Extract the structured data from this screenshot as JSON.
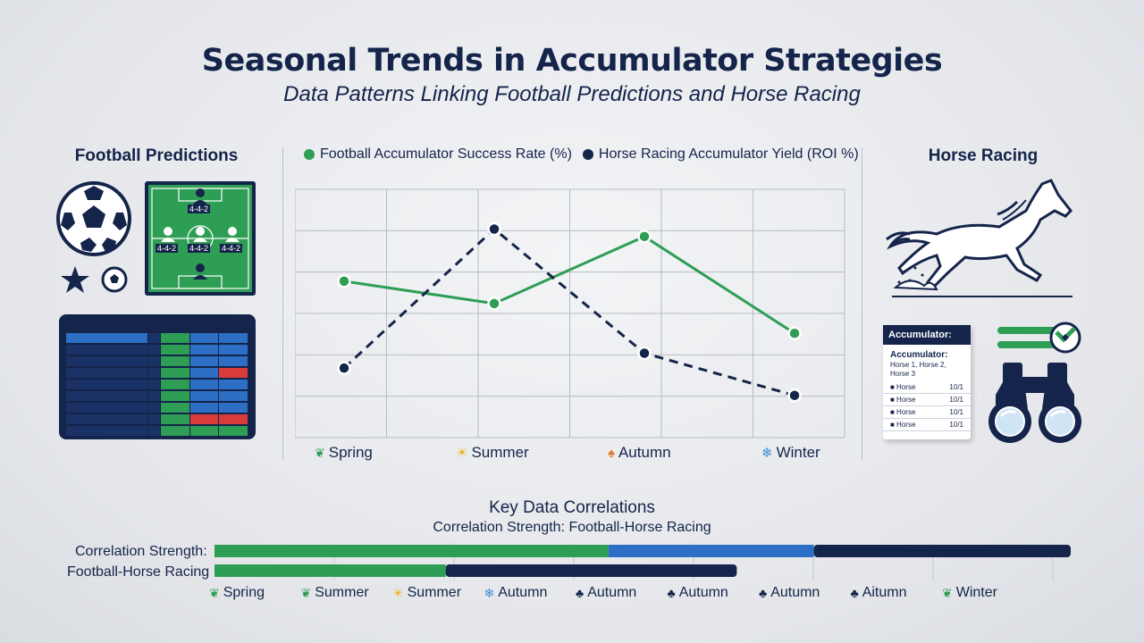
{
  "header": {
    "title": "Seasonal Trends in Accumulator Strategies",
    "subtitle": "Data Patterns Linking Football Predictions and Horse Racing"
  },
  "sections": {
    "left_title": "Football Predictions",
    "right_title": "Horse Racing"
  },
  "pitch": {
    "formations": [
      "4-4-2",
      "4-4-2",
      "4-4-2",
      "4-4-2"
    ]
  },
  "ticket": {
    "title": "Accumulator:",
    "heading": "Accumulator:",
    "line1": "Horse 1, Horse 2,",
    "line2": "Horse 3",
    "rows": [
      {
        "name": "Horse",
        "odds": "10/1"
      },
      {
        "name": "Horse",
        "odds": "10/1"
      },
      {
        "name": "Horse",
        "odds": "10/1"
      },
      {
        "name": "Horse",
        "odds": "10/1"
      }
    ]
  },
  "colors": {
    "football": "#2f9e55",
    "horse": "#14244a",
    "mid_blue": "#2c6fc4",
    "grid": "#b7bcc4"
  },
  "icons": {
    "left": [
      "soccer-ball-icon",
      "star-icon",
      "small-ball-icon",
      "tactics-board-icon",
      "tablet-table-icon"
    ],
    "right": [
      "galloping-horse-icon",
      "accumulator-ticket-icon",
      "toggle-icon",
      "binoculars-icon"
    ]
  },
  "chart_data": {
    "type": "line",
    "categories": [
      "Spring",
      "Summer",
      "Autumn",
      "Winter"
    ],
    "series": [
      {
        "name": "Football Accumulator Success Rate (%)",
        "values": [
          63,
          54,
          81,
          42
        ],
        "color": "#2f9e55",
        "style": "solid"
      },
      {
        "name": "Horse Racing Accumulator Yield (ROI %)",
        "values": [
          28,
          84,
          34,
          17
        ],
        "color": "#14244a",
        "style": "dashed"
      }
    ],
    "ylim": [
      0,
      100
    ],
    "grid": true,
    "legend": "top",
    "season_icons": [
      "leaf-icon",
      "sun-icon",
      "maple-leaf-icon",
      "snowflake-icon"
    ]
  },
  "correlations": {
    "title": "Key Data Correlations",
    "subtitle": "Correlation Strength: Football-Horse Racing",
    "label_line1": "Correlation Strength:",
    "label_line2": "Football-Horse Racing",
    "bars": [
      {
        "segments": [
          {
            "value": 46,
            "color": "#2f9e55"
          },
          {
            "value": 24,
            "color": "#2c6fc4"
          },
          {
            "value": 30,
            "color": "#14244a"
          }
        ]
      },
      {
        "segments": [
          {
            "value": 27,
            "color": "#2f9e55"
          },
          {
            "value": 34,
            "color": "#14244a"
          }
        ]
      }
    ],
    "seasons": [
      {
        "label": "Spring",
        "icon": "leaf-icon"
      },
      {
        "label": "Summer",
        "icon": "leaf-icon"
      },
      {
        "label": "Summer",
        "icon": "sun-icon"
      },
      {
        "label": "Autumn",
        "icon": "snowflake-icon"
      },
      {
        "label": "Autumn",
        "icon": "maple-leaf-icon"
      },
      {
        "label": "Autumn",
        "icon": "maple-leaf-icon"
      },
      {
        "label": "Autumn",
        "icon": "maple-leaf-icon"
      },
      {
        "label": "Aitumn",
        "icon": "maple-leaf-icon"
      },
      {
        "label": "Winter",
        "icon": "leaf-icon"
      }
    ]
  }
}
